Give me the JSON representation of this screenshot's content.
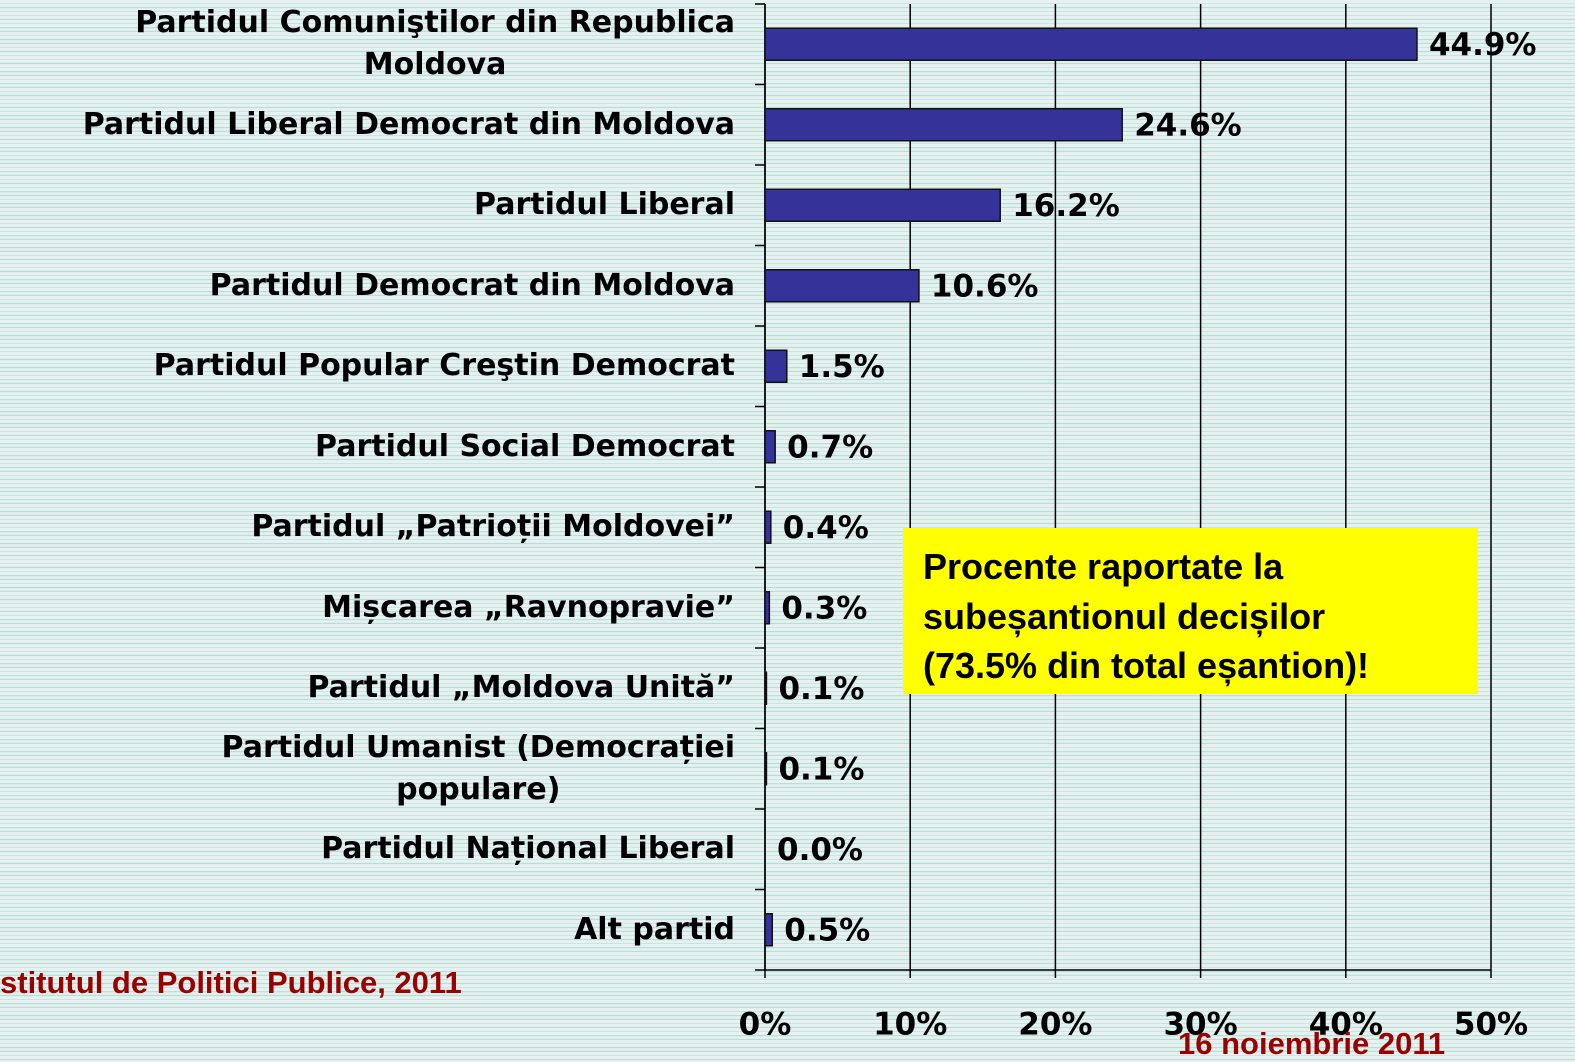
{
  "chart_data": {
    "type": "barh",
    "categories": [
      "Partidul Comuniştilor din Republica\nMoldova",
      "Partidul Liberal Democrat din Moldova",
      "Partidul Liberal",
      "Partidul Democrat din Moldova",
      "Partidul Popular Creştin Democrat",
      "Partidul Social Democrat",
      "Partidul „Patrioții Moldovei”",
      "Mișcarea „Ravnopravie”",
      "Partidul „Moldova Unită”",
      "Partidul Umanist (Democrației\npopulare)",
      "Partidul Național Liberal",
      "Alt partid"
    ],
    "values": [
      44.9,
      24.6,
      16.2,
      10.6,
      1.5,
      0.7,
      0.4,
      0.3,
      0.1,
      0.1,
      0.0,
      0.5
    ],
    "value_labels": [
      "44.9%",
      "24.6%",
      "16.2%",
      "10.6%",
      "1.5%",
      "0.7%",
      "0.4%",
      "0.3%",
      "0.1%",
      "0.1%",
      "0.0%",
      "0.5%"
    ],
    "color": "#333399",
    "xlim": [
      0,
      50
    ],
    "xticks": [
      {
        "value": 0,
        "label": "0%"
      },
      {
        "value": 10,
        "label": "10%"
      },
      {
        "value": 20,
        "label": "20%"
      },
      {
        "value": 30,
        "label": "30%"
      },
      {
        "value": 40,
        "label": "40%"
      },
      {
        "value": 50,
        "label": "50%"
      }
    ],
    "grid": true,
    "annotation": "Procente raportate la\nsubeșantionul decișilor\n(73.5% din total eșantion)!",
    "source": "stitutul de Politici Publice, 2011",
    "date": "16 noiembrie 2011"
  }
}
